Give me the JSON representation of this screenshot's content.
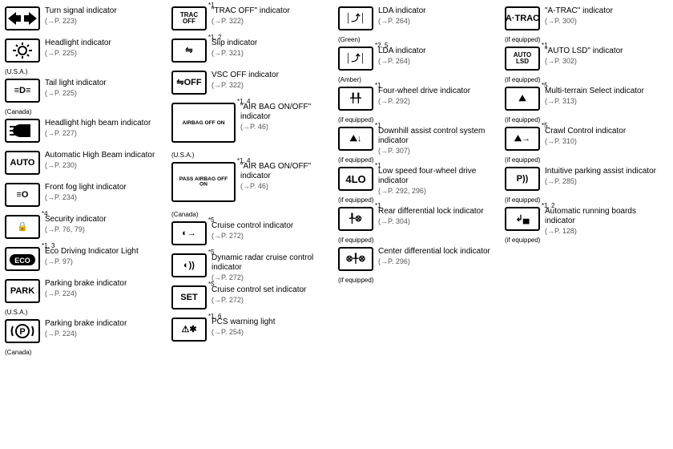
{
  "columns": [
    [
      {
        "icon": "arrows",
        "label": "Turn signal indicator",
        "page": "(→P. 223)"
      },
      {
        "icon": "sun",
        "label": "Headlight indicator",
        "page": "(→P. 225)",
        "foot": "(U.S.A.)"
      },
      {
        "icon": "taillight",
        "label": "Tail light indicator",
        "page": "(→P. 225)",
        "foot": "(Canada)"
      },
      {
        "icon": "highbeam",
        "label": "Headlight high beam indicator",
        "page": "(→P. 227)"
      },
      {
        "icon": "autobeam",
        "label": "Automatic High Beam indicator",
        "page": "(→P. 230)"
      },
      {
        "icon": "fog",
        "label": "Front fog light indicator",
        "page": "(→P. 234)"
      },
      {
        "icon": "security",
        "note": "*4",
        "label": "Security indicator",
        "page": "(→P. 76, 79)"
      },
      {
        "icon": "eco",
        "note": "*1, 3",
        "label": "Eco Driving Indicator Light",
        "page": "(→P. 97)"
      },
      {
        "icon": "park",
        "label": "Parking brake indicator",
        "page": "(→P. 224)",
        "foot": "(U.S.A.)"
      },
      {
        "icon": "pcircle",
        "label": "Parking brake indicator",
        "page": "(→P. 224)",
        "foot": "(Canada)"
      }
    ],
    [
      {
        "icon": "tracoff",
        "note": "*1",
        "label": "\"TRAC OFF\" indicator",
        "page": "(→P. 322)"
      },
      {
        "icon": "slip",
        "note": "*1, 2",
        "label": "Slip indicator",
        "page": "(→P. 321)"
      },
      {
        "icon": "vscoff",
        "label": "VSC OFF indicator",
        "page": "(→P. 322)"
      },
      {
        "icon": "airbag_us",
        "big": true,
        "note": "*1, 4",
        "label": "\"AIR BAG ON/OFF\" indicator",
        "page": "(→P. 46)",
        "foot": "(U.S.A.)"
      },
      {
        "icon": "airbag_ca",
        "big": true,
        "note": "*1, 4",
        "label": "\"AIR BAG ON/OFF\" indicator",
        "page": "(→P. 46)",
        "foot": "(Canada)"
      },
      {
        "icon": "cruise",
        "note": "*5",
        "label": "Cruise control indicator",
        "page": "(→P. 272)"
      },
      {
        "icon": "radar",
        "note": "*5",
        "label": "Dynamic radar cruise control indicator",
        "page": "(→P. 272)"
      },
      {
        "icon": "set",
        "note": "*5",
        "label": "Cruise control set indicator",
        "page": "(→P. 272)"
      },
      {
        "icon": "pcs",
        "note": "*1, 6",
        "label": "PCS warning light",
        "page": "(→P. 254)"
      }
    ],
    [
      {
        "icon": "lda",
        "label": "LDA indicator",
        "page": "(→P. 264)",
        "foot": "(Green)"
      },
      {
        "icon": "lda",
        "note": "*2, 5",
        "label": "LDA indicator",
        "page": "(→P. 264)",
        "foot": "(Amber)"
      },
      {
        "icon": "4wd",
        "note": "*1",
        "label": "Four-wheel drive indicator",
        "page": "(→P. 292)",
        "foot": "(if equipped)"
      },
      {
        "icon": "downhill",
        "note": "*1",
        "label": "Downhill assist control system indicator",
        "page": "(→P. 307)",
        "foot": "(if equipped)"
      },
      {
        "icon": "4lo",
        "note": "*1",
        "label": "Low speed four-wheel drive indicator",
        "page": "(→P. 292, 296)",
        "foot": "(if equipped)"
      },
      {
        "icon": "rearlock",
        "note": "*1",
        "label": "Rear differential lock indicator",
        "page": "(→P. 304)",
        "foot": "(if equipped)"
      },
      {
        "icon": "centerlock",
        "label": "Center differential lock indicator",
        "page": "(→P. 296)",
        "foot": "(if equipped)"
      }
    ],
    [
      {
        "icon": "atrac",
        "label": "\"A-TRAC\" indicator",
        "page": "(→P. 300)",
        "foot": "(if equipped)"
      },
      {
        "icon": "autolsd",
        "note": "*1",
        "label": "\"AUTO LSD\" indicator",
        "page": "(→P. 302)",
        "foot": "(if equipped)"
      },
      {
        "icon": "mts",
        "note": "*5",
        "label": "Multi-terrain Select indicator",
        "page": "(→P. 313)",
        "foot": "(if equipped)"
      },
      {
        "icon": "crawl",
        "note": "*5",
        "label": "Crawl Control indicator",
        "page": "(→P. 310)",
        "foot": "(if equipped)"
      },
      {
        "icon": "parking",
        "label": "Intuitive parking assist indicator",
        "page": "(→P. 285)",
        "foot": "(if equipped)"
      },
      {
        "icon": "boards",
        "note": "*1, 2",
        "label": "Automatic running boards indicator",
        "page": "(→P. 128)",
        "foot": "(if equipped)"
      }
    ]
  ],
  "icon_labels": {
    "arrows": "◀ ▶",
    "sun": "☼",
    "taillight": "≡D≡",
    "highbeam": "≡●",
    "autobeam": "AUTO",
    "fog": "≡O",
    "security": "🔒",
    "eco": "ECO",
    "park": "PARK",
    "pcircle": "((P))",
    "tracoff": "TRAC OFF",
    "slip": "⇋",
    "vscoff": "⇋OFF",
    "airbag_us": "AIRBAG OFF ON",
    "airbag_ca": "PASS AIRBAG OFF ON",
    "cruise": "◐→",
    "radar": "◐))",
    "set": "SET",
    "pcs": "⚠✱",
    "lda": "│⤴│",
    "4wd": "╀╀",
    "downhill": "⛰↓",
    "4lo": "4LO",
    "rearlock": "╀⊗",
    "centerlock": "⊗╀⊗",
    "atrac": "A·TRAC",
    "autolsd": "AUTO LSD",
    "mts": "⛰",
    "crawl": "⛰→",
    "parking": "P))",
    "boards": "↲▄"
  },
  "style": {
    "fontsize_body": 10,
    "fontsize_small": 8,
    "color_text": "#000000",
    "color_border": "#000000",
    "bg": "#ffffff"
  }
}
